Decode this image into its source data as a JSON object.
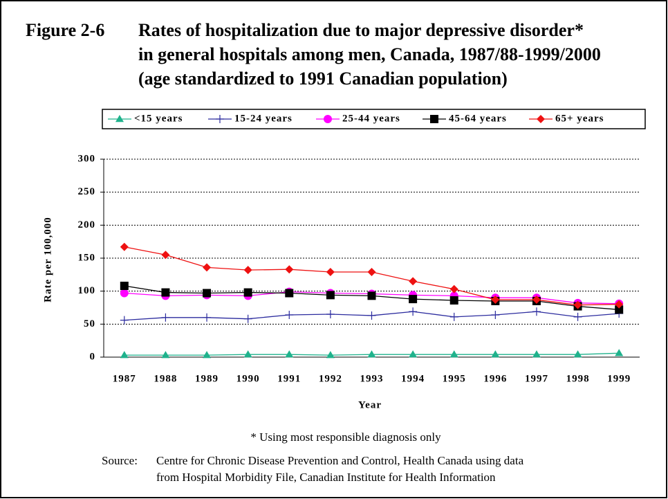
{
  "chart_data": {
    "type": "line",
    "figure_label": "Figure 2-6",
    "title": [
      "Rates of hospitalization due to major depressive disorder*",
      "in general hospitals among men, Canada, 1987/88-1999/2000",
      "(age standardized to 1991 Canadian population)"
    ],
    "y_label": "Rate per 100,000",
    "x_label": "Year",
    "categories": [
      "1987",
      "1988",
      "1989",
      "1990",
      "1991",
      "1992",
      "1993",
      "1994",
      "1995",
      "1996",
      "1997",
      "1998",
      "1999"
    ],
    "series": [
      {
        "name": "<15 years",
        "color": "#1fb28c",
        "marker": "triangle",
        "values": [
          3,
          3,
          3,
          4,
          4,
          3,
          4,
          4,
          4,
          4,
          4,
          4,
          6
        ]
      },
      {
        "name": "15-24 years",
        "color": "#2b2b9e",
        "marker": "plus",
        "values": [
          56,
          60,
          60,
          58,
          64,
          65,
          63,
          69,
          61,
          64,
          69,
          61,
          66
        ]
      },
      {
        "name": "25-44 years",
        "color": "#ff00ff",
        "marker": "circle",
        "values": [
          97,
          93,
          94,
          93,
          99,
          97,
          96,
          94,
          93,
          90,
          90,
          82,
          81
        ]
      },
      {
        "name": "45-64 years",
        "color": "#000000",
        "marker": "square",
        "values": [
          108,
          98,
          97,
          98,
          97,
          94,
          93,
          88,
          86,
          85,
          85,
          77,
          72
        ]
      },
      {
        "name": "65+ years",
        "color": "#ee1111",
        "marker": "diamond",
        "values": [
          167,
          155,
          136,
          132,
          133,
          129,
          129,
          115,
          103,
          87,
          87,
          79,
          80
        ]
      }
    ],
    "ylim": [
      0,
      300
    ],
    "yticks": [
      0,
      50,
      100,
      150,
      200,
      250,
      300
    ],
    "grid": true,
    "legend": "top",
    "footnote": "* Using most responsible diagnosis only",
    "source_label": "Source:",
    "source": [
      "Centre for Chronic Disease Prevention and Control, Health Canada using data",
      "from Hospital Morbidity File, Canadian Institute for Health Information"
    ]
  }
}
